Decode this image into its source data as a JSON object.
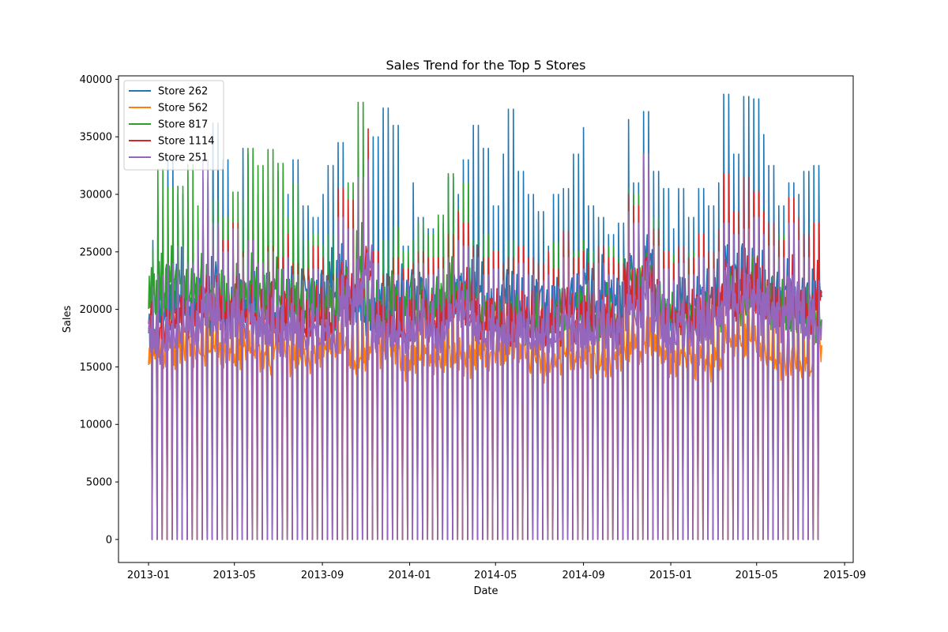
{
  "chart_data": {
    "type": "line",
    "title": "Sales Trend for the Top 5 Stores",
    "xlabel": "Date",
    "ylabel": "Sales",
    "x_range": [
      "2012-11-20",
      "2015-09-13"
    ],
    "ylim": [
      -2000,
      40300
    ],
    "x_ticks": [
      "2013-01",
      "2013-05",
      "2013-09",
      "2014-01",
      "2014-05",
      "2014-09",
      "2015-01",
      "2015-05",
      "2015-09"
    ],
    "y_ticks": [
      0,
      5000,
      10000,
      15000,
      20000,
      25000,
      30000,
      35000,
      40000
    ],
    "legend_position": "upper-left",
    "grid": false,
    "date_start": "2013-01-01",
    "date_end": "2015-07-31",
    "sampling": "weekly (Sundays closed = 0 sales; values approximate, read from the figure)",
    "series": [
      {
        "name": "Store 262",
        "color": "#1f77b4",
        "weekly_peaks": [
          26000,
          29000,
          33000,
          30000,
          27500,
          25000,
          31000,
          36200,
          33000,
          26000,
          34000,
          33500,
          30000,
          28000,
          32000,
          30000,
          33000,
          29000,
          28000,
          30000,
          32500,
          34500,
          26000,
          28000,
          29000,
          35000,
          37500,
          36000,
          25500,
          31000,
          28000,
          27000,
          27500,
          31500,
          30000,
          33000,
          36000,
          34000,
          29000,
          33500,
          37400,
          32000,
          30000,
          28500,
          25500,
          30000,
          30500,
          33500,
          35800,
          29000,
          28000,
          26500,
          27500,
          36500,
          31000,
          37200,
          32000,
          30500,
          27000,
          30500,
          28000,
          30500,
          29000,
          31000,
          38700,
          33500,
          38500,
          38300,
          35200,
          32500,
          29000,
          31000,
          30000,
          32000,
          32500
        ],
        "weekday_base": [
          18000,
          20000,
          21000,
          22000,
          20000,
          21500,
          19500,
          22500,
          19500,
          20000,
          21000,
          22000,
          20500,
          21000,
          19500,
          21000,
          20000,
          22000,
          20500,
          21500,
          22000,
          23000,
          21000,
          20500,
          19000,
          20000,
          21000,
          20500,
          21000,
          22000,
          21500,
          20000,
          21000,
          20500,
          22000,
          21000,
          22500,
          21000,
          20500,
          21500,
          21000,
          20500,
          20000,
          21000,
          19500,
          20500,
          20000,
          21000,
          22000,
          20500,
          21500,
          21000,
          20500,
          23000,
          22000,
          24000,
          22000,
          21000,
          20500,
          21000,
          20000,
          21000,
          20500,
          21500,
          24000,
          23000,
          24000,
          23500,
          22000,
          21500,
          21000,
          21500,
          20500,
          21000,
          21500
        ]
      },
      {
        "name": "Store 562",
        "color": "#ff7f0e",
        "weekly_peaks": [
          19000,
          20000,
          21500,
          20500,
          21000,
          20000,
          22000,
          21000,
          20500,
          20000,
          21000,
          21500,
          20000,
          19500,
          20500,
          20000,
          20500,
          19500,
          20000,
          21000,
          21500,
          22000,
          20000,
          19500,
          20000,
          21000,
          22500,
          22000,
          19500,
          20000,
          20500,
          19500,
          20000,
          21000,
          20500,
          20000,
          21500,
          21000,
          20500,
          21000,
          22000,
          20500,
          20000,
          19500,
          19000,
          20500,
          20000,
          20500,
          21000,
          20000,
          20500,
          19500,
          20000,
          22000,
          21000,
          23000,
          21000,
          20500,
          20000,
          20500,
          19500,
          20000,
          19500,
          20500,
          22500,
          21500,
          22000,
          22500,
          21000,
          20500,
          19500,
          20000,
          19000,
          20000,
          21000
        ],
        "weekday_base": [
          16500,
          16000,
          16500,
          17000,
          16500,
          16000,
          17000,
          17500,
          16500,
          16000,
          16500,
          17000,
          16000,
          15500,
          16500,
          16000,
          16500,
          15500,
          16000,
          16500,
          17000,
          17500,
          16000,
          15500,
          16000,
          16500,
          17500,
          17000,
          15500,
          16000,
          16500,
          15500,
          16000,
          16500,
          16000,
          15500,
          16500,
          16000,
          16000,
          16500,
          17000,
          16000,
          15500,
          15500,
          15000,
          16000,
          15500,
          16000,
          16500,
          15500,
          16000,
          15500,
          16000,
          17000,
          16500,
          18000,
          16500,
          16000,
          15500,
          16000,
          15500,
          16000,
          15500,
          16000,
          17500,
          17000,
          17000,
          17500,
          16500,
          16000,
          15500,
          16000,
          15000,
          15500,
          17000
        ]
      },
      {
        "name": "Store 817",
        "color": "#2ca02c",
        "weekly_peaks": [
          25300,
          32200,
          30600,
          30700,
          32600,
          29000,
          31400,
          29500,
          28000,
          30200,
          29500,
          34000,
          32500,
          33900,
          32700,
          28000,
          30900,
          26000,
          26500,
          25600,
          26500,
          27000,
          31000,
          38000,
          27000,
          24500,
          26000,
          27200,
          25000,
          26000,
          27500,
          26500,
          28200,
          31800,
          28700,
          31000,
          26000,
          26500,
          25000,
          24000,
          26000,
          25500,
          24500,
          24000,
          24500,
          25800,
          25500,
          25000,
          26000,
          25000,
          24500,
          25500,
          24500,
          30500,
          30000,
          33600,
          28000,
          25000,
          24800,
          24000,
          25000,
          24500,
          24500,
          26000,
          30600,
          28200,
          27000,
          29000,
          28000,
          27000,
          26500,
          26000,
          25500,
          25000,
          23000
        ],
        "weekday_base": [
          21000,
          22000,
          22500,
          22000,
          21500,
          22000,
          21500,
          21000,
          21000,
          21500,
          21000,
          22000,
          21500,
          22500,
          21500,
          20500,
          21000,
          20000,
          20500,
          20000,
          20500,
          21000,
          21500,
          24000,
          20500,
          19500,
          20000,
          20500,
          19500,
          20000,
          20500,
          20000,
          21000,
          22000,
          21000,
          21500,
          20000,
          20500,
          19500,
          19000,
          20000,
          19500,
          19000,
          19000,
          19000,
          19500,
          19500,
          19000,
          20000,
          19500,
          19000,
          19500,
          19000,
          22000,
          21500,
          23500,
          21000,
          19500,
          19500,
          19000,
          19500,
          19000,
          19000,
          20000,
          22000,
          21000,
          20500,
          21500,
          21000,
          20500,
          20000,
          20000,
          19500,
          19500,
          19000
        ]
      },
      {
        "name": "Store 1114",
        "color": "#d62728",
        "weekly_peaks": [
          20600,
          21000,
          21500,
          22500,
          22000,
          23000,
          28800,
          27000,
          26000,
          27500,
          25000,
          26000,
          24000,
          25500,
          24500,
          26500,
          24000,
          23500,
          25500,
          24500,
          23000,
          30500,
          29500,
          31000,
          35700,
          25000,
          23000,
          24500,
          23500,
          24000,
          25000,
          24500,
          24500,
          26500,
          28500,
          27500,
          25500,
          24500,
          25000,
          24000,
          24500,
          25500,
          24500,
          24000,
          25000,
          23500,
          26800,
          24500,
          25000,
          24000,
          25500,
          24500,
          24000,
          30000,
          29000,
          32500,
          27000,
          25000,
          24000,
          25500,
          24500,
          26500,
          25000,
          27000,
          31800,
          28500,
          31500,
          30200,
          28500,
          27500,
          26000,
          29700,
          28000,
          26500,
          27500
        ],
        "weekday_base": [
          18500,
          18000,
          19000,
          19500,
          19000,
          19500,
          21000,
          20500,
          20000,
          20500,
          19500,
          20000,
          19000,
          19500,
          19000,
          20000,
          19000,
          18500,
          19500,
          19000,
          18500,
          21500,
          21000,
          22000,
          24000,
          19500,
          18500,
          19000,
          18500,
          19000,
          19500,
          19000,
          19000,
          20000,
          21000,
          20500,
          19500,
          19000,
          19500,
          19000,
          19000,
          19500,
          19000,
          18500,
          19000,
          18500,
          20000,
          19000,
          19500,
          19000,
          19500,
          19000,
          18500,
          21500,
          21000,
          23000,
          20500,
          19500,
          19000,
          19500,
          19000,
          20000,
          19500,
          20500,
          22500,
          21000,
          22500,
          22000,
          21000,
          20500,
          20000,
          21500,
          21000,
          20000,
          21000
        ]
      },
      {
        "name": "Store 251",
        "color": "#9467bd",
        "weekly_peaks": [
          22000,
          23000,
          24000,
          25500,
          24000,
          26000,
          33000,
          27500,
          25000,
          27000,
          24500,
          26000,
          24000,
          25000,
          23500,
          24500,
          23000,
          22500,
          23500,
          23000,
          22500,
          28000,
          27000,
          31500,
          33000,
          24000,
          22000,
          23000,
          22500,
          23000,
          24000,
          23000,
          23500,
          24500,
          26000,
          25500,
          24500,
          23000,
          23500,
          22500,
          23000,
          24000,
          23000,
          22500,
          23000,
          22000,
          24500,
          23000,
          23500,
          22500,
          24000,
          23000,
          22500,
          28500,
          27500,
          33500,
          25500,
          23500,
          22500,
          24000,
          23000,
          24500,
          23500,
          25000,
          27500,
          26500,
          27000,
          28000,
          26500,
          25500,
          24500,
          27500,
          26000,
          24500,
          22500
        ],
        "weekday_base": [
          17500,
          17000,
          18000,
          18500,
          18000,
          18500,
          20000,
          19500,
          19000,
          19500,
          18500,
          19000,
          18000,
          18500,
          18000,
          19000,
          18000,
          17500,
          18500,
          18000,
          17500,
          20500,
          20000,
          21500,
          23000,
          18500,
          17500,
          18000,
          17500,
          18000,
          18500,
          18000,
          18000,
          19000,
          20000,
          19500,
          18500,
          18000,
          18500,
          18000,
          18000,
          18500,
          18000,
          17500,
          18000,
          17500,
          19000,
          18000,
          18500,
          18000,
          18500,
          18000,
          17500,
          20500,
          20000,
          22500,
          19500,
          18500,
          18000,
          18500,
          18000,
          19000,
          18500,
          19500,
          21500,
          20000,
          21500,
          21000,
          20000,
          19500,
          19000,
          20500,
          20000,
          19000,
          18500
        ]
      }
    ]
  }
}
